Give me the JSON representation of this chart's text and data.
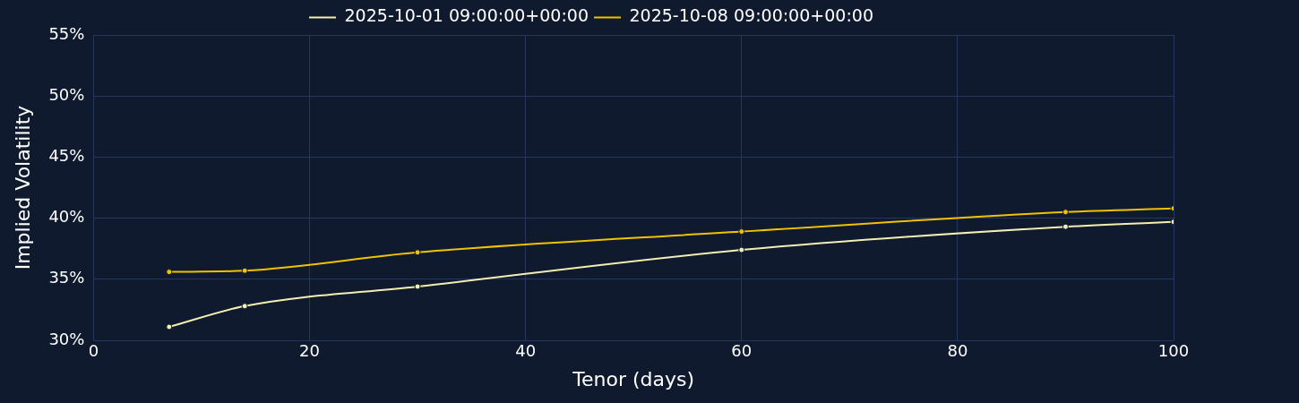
{
  "chart_data": {
    "type": "line",
    "xlabel": "Tenor (days)",
    "ylabel": "Implied Volatility",
    "x": [
      7,
      14,
      30,
      60,
      90,
      100
    ],
    "series": [
      {
        "name": "2025-10-01 09:00:00+00:00",
        "color": "#f3efb2",
        "values": [
          31.1,
          32.8,
          34.4,
          37.4,
          39.3,
          39.7
        ]
      },
      {
        "name": "2025-10-08 09:00:00+00:00",
        "color": "#f2c200",
        "values": [
          35.6,
          35.7,
          37.2,
          38.9,
          40.5,
          40.8
        ]
      }
    ],
    "xlim": [
      0,
      100
    ],
    "xticks": [
      0,
      20,
      40,
      60,
      80,
      100
    ],
    "ylim": [
      30,
      55
    ],
    "yticks": [
      {
        "value": 30,
        "label": "30%"
      },
      {
        "value": 35,
        "label": "35%"
      },
      {
        "value": 40,
        "label": "40%"
      },
      {
        "value": 45,
        "label": "45%"
      },
      {
        "value": 50,
        "label": "50%"
      },
      {
        "value": 55,
        "label": "55%"
      }
    ],
    "grid": true,
    "legend": "top",
    "marker": "circle",
    "line_style": "solid"
  }
}
